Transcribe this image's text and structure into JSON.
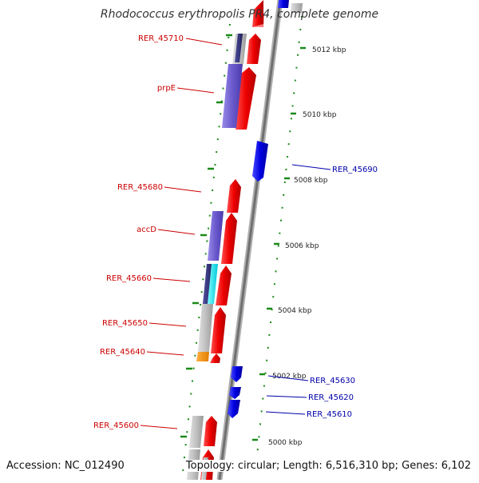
{
  "title": "Rhodococcus erythropolis PR4, complete genome",
  "footer": {
    "accession": "Accession: NC_012490",
    "summary": "Topology: circular; Length: 6,516,310 bp; Genes: 6,102"
  },
  "scale_labels": [
    "5012 kbp",
    "5010 kbp",
    "5008 kbp",
    "5006 kbp",
    "5004 kbp",
    "5002 kbp",
    "5000 kbp"
  ],
  "gene_labels_left": [
    "RER_45710",
    "prpE",
    "RER_45680",
    "accD",
    "RER_45660",
    "RER_45650",
    "RER_45640",
    "RER_45600"
  ],
  "gene_labels_right": [
    "RER_45690",
    "RER_45630",
    "RER_45620",
    "RER_45610"
  ],
  "colors": {
    "forward_gene": "#ff0000",
    "reverse_gene": "#0000ee",
    "left_label": "#cc0000",
    "right_label": "#0000aa",
    "scale_ticks": "#1a8a1a",
    "backbone": "#808080"
  }
}
